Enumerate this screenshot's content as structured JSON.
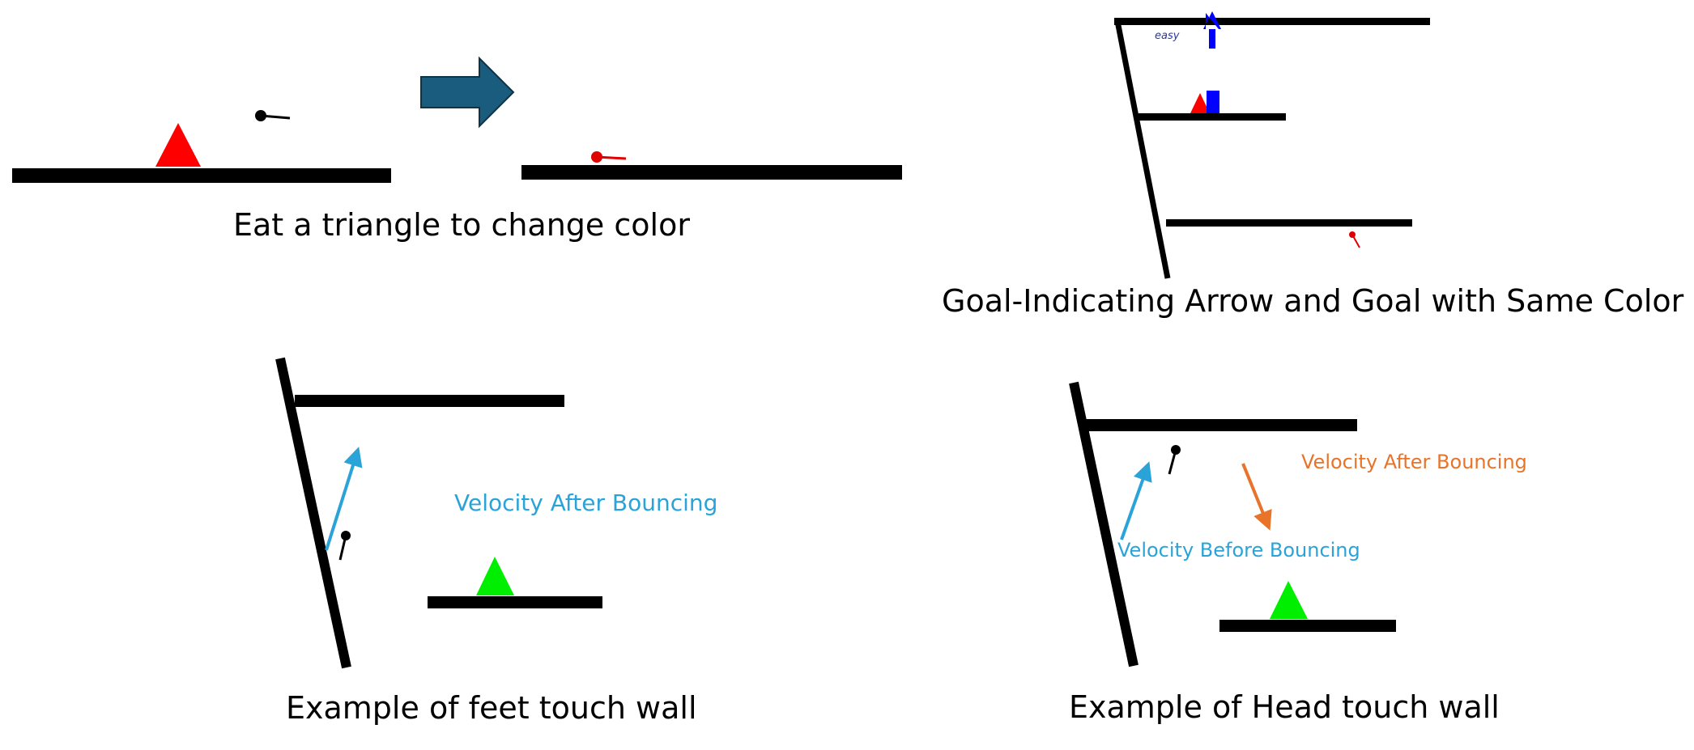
{
  "captions": {
    "eat_triangle": "Eat a triangle to change color",
    "goal_arrow": "Goal-Indicating Arrow and Goal with Same Color",
    "feet_touch": "Example of feet touch wall",
    "head_touch": "Example of Head touch wall"
  },
  "annotations": {
    "feet_velocity_after": "Velocity After Bouncing",
    "head_velocity_after": "Velocity After Bouncing",
    "head_velocity_before": "Velocity Before Bouncing"
  },
  "difficulty_label": "easy",
  "colors": {
    "platform": "#000000",
    "red_triangle": "#ff0000",
    "green_triangle": "#00ee00",
    "blue_goal": "#0000ff",
    "transition_arrow": "#1a5c7e",
    "velocity_before": "#2aa3d8",
    "velocity_after_orange": "#e8742a",
    "difficulty_text": "#2a3a9a"
  }
}
